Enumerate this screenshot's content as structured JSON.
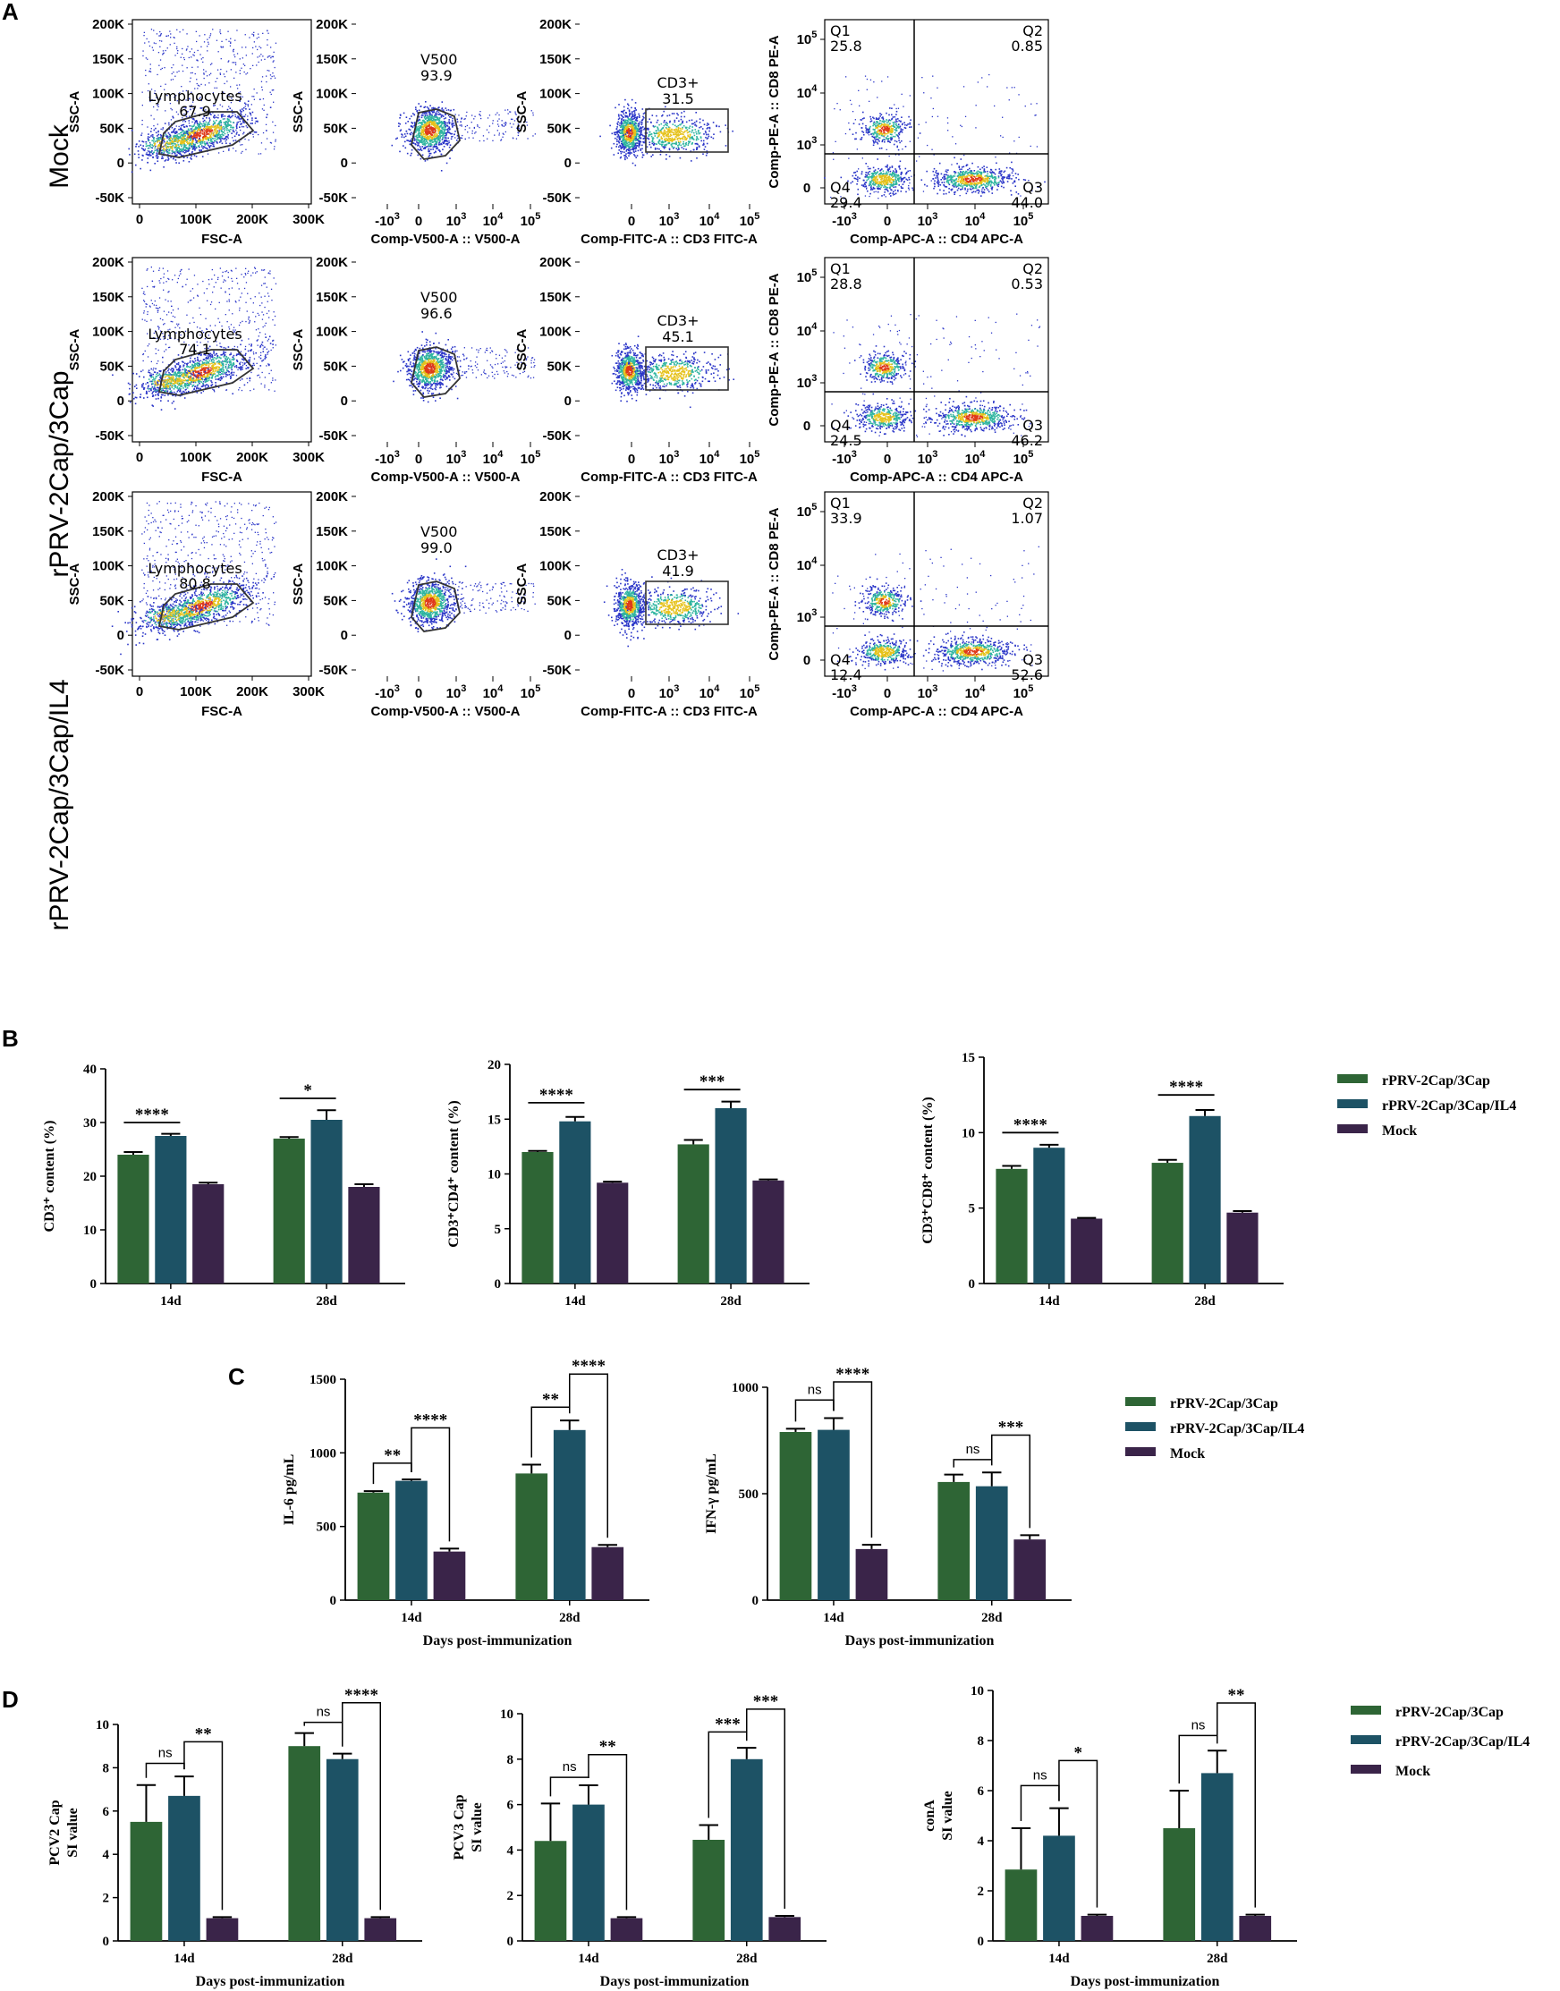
{
  "panel_labels": [
    "A",
    "B",
    "C",
    "D"
  ],
  "row_labels": [
    "Mock",
    "rPRV-2Cap/3Cap",
    "rPRV-2Cap/3Cap/IL4"
  ],
  "colors": {
    "rPRV-2Cap/3Cap": "#2e6535",
    "rPRV-2Cap/3Cap/IL4": "#1d5265",
    "Mock": "#3a2449",
    "dot_low": "#2a35c8",
    "dot_mid": "#2fb5a0",
    "dot_high": "#e6c21c",
    "dot_peak": "#e03a1a"
  },
  "flow": {
    "ssc_ticks": [
      "200K",
      "150K",
      "100K",
      "50K",
      "0",
      "-50K"
    ],
    "fsc_ticks": [
      "0",
      "100K",
      "200K",
      "300K"
    ],
    "fsc_ticks2": [
      "0",
      "100K",
      "200K",
      "300K"
    ],
    "v500_ticks": [
      "-10",
      "0",
      "10",
      "10",
      "10"
    ],
    "v500_exp": [
      "3",
      "",
      "3",
      "4",
      "5"
    ],
    "fitc_ticks": [
      "0",
      "10",
      "10",
      "10"
    ],
    "fitc_exp": [
      "",
      "3",
      "4",
      "5"
    ],
    "pe_ticks": [
      "10",
      "10",
      "10",
      "0"
    ],
    "pe_exp": [
      "5",
      "4",
      "3",
      ""
    ],
    "apc_ticks": [
      "-10",
      "0",
      "10",
      "10",
      "10"
    ],
    "apc_exp": [
      "3",
      "",
      "3",
      "4",
      "5"
    ],
    "axis_labels": {
      "ssc": "SSC-A",
      "fsc": "FSC-A",
      "v500": "Comp-V500-A :: V500-A",
      "fitc": "Comp-FITC-A :: CD3 FITC-A",
      "pe": "Comp-PE-A :: CD8 PE-A",
      "apc": "Comp-APC-A :: CD4 APC-A"
    },
    "rows": [
      {
        "lymph_label": "Lymphocytes",
        "lymph_value": "67.9",
        "v500_label": "V500",
        "v500_value": "93.9",
        "cd3_label": "CD3+",
        "cd3_value": "31.5",
        "q": [
          {
            "name": "Q1",
            "value": "25.8"
          },
          {
            "name": "Q2",
            "value": "0.85"
          },
          {
            "name": "Q3",
            "value": "44.0"
          },
          {
            "name": "Q4",
            "value": "29.4"
          }
        ]
      },
      {
        "lymph_label": "Lymphocytes",
        "lymph_value": "74.1",
        "v500_label": "V500",
        "v500_value": "96.6",
        "cd3_label": "CD3+",
        "cd3_value": "45.1",
        "q": [
          {
            "name": "Q1",
            "value": "28.8"
          },
          {
            "name": "Q2",
            "value": "0.53"
          },
          {
            "name": "Q3",
            "value": "46.2"
          },
          {
            "name": "Q4",
            "value": "24.5"
          }
        ]
      },
      {
        "lymph_label": "Lymphocytes",
        "lymph_value": "80.8",
        "v500_label": "V500",
        "v500_value": "99.0",
        "cd3_label": "CD3+",
        "cd3_value": "41.9",
        "q": [
          {
            "name": "Q1",
            "value": "33.9"
          },
          {
            "name": "Q2",
            "value": "1.07"
          },
          {
            "name": "Q3",
            "value": "52.6"
          },
          {
            "name": "Q4",
            "value": "12.4"
          }
        ]
      }
    ]
  },
  "chart_data": [
    {
      "id": "B1",
      "type": "bar",
      "title": "",
      "ylabel": "CD3⁺ content (%)",
      "xlabel": "",
      "ylim": [
        0,
        40
      ],
      "yticks": [
        "0",
        "10",
        "20",
        "30",
        "40"
      ],
      "categories": [
        "14d",
        "28d"
      ],
      "series": [
        {
          "name": "rPRV-2Cap/3Cap",
          "values": [
            24.0,
            27.0
          ],
          "errors": [
            0.5,
            0.3
          ]
        },
        {
          "name": "rPRV-2Cap/3Cap/IL4",
          "values": [
            27.5,
            30.5
          ],
          "errors": [
            0.4,
            1.8
          ]
        },
        {
          "name": "Mock",
          "values": [
            18.5,
            18.0
          ],
          "errors": [
            0.3,
            0.5
          ]
        }
      ],
      "significance": [
        {
          "label": "****",
          "cat": 0,
          "from": 0,
          "to": 1,
          "y": 30
        },
        {
          "label": "*",
          "cat": 1,
          "from": 0,
          "to": 1,
          "y": 34.5
        }
      ]
    },
    {
      "id": "B2",
      "type": "bar",
      "title": "",
      "ylabel": "CD3⁺CD4⁺ content (%)",
      "xlabel": "",
      "ylim": [
        0,
        20
      ],
      "yticks": [
        "0",
        "5",
        "10",
        "15",
        "20"
      ],
      "categories": [
        "14d",
        "28d"
      ],
      "series": [
        {
          "name": "rPRV-2Cap/3Cap",
          "values": [
            12.0,
            12.7
          ],
          "errors": [
            0.1,
            0.4
          ]
        },
        {
          "name": "rPRV-2Cap/3Cap/IL4",
          "values": [
            14.8,
            16.0
          ],
          "errors": [
            0.4,
            0.6
          ]
        },
        {
          "name": "Mock",
          "values": [
            9.2,
            9.4
          ],
          "errors": [
            0.1,
            0.1
          ]
        }
      ],
      "significance": [
        {
          "label": "****",
          "cat": 0,
          "from": 0,
          "to": 1,
          "y": 16.5
        },
        {
          "label": "***",
          "cat": 1,
          "from": 0,
          "to": 1,
          "y": 17.7
        }
      ]
    },
    {
      "id": "B3",
      "type": "bar",
      "title": "",
      "ylabel": "CD3⁺CD8⁺ content (%)",
      "xlabel": "",
      "ylim": [
        0,
        15
      ],
      "yticks": [
        "0",
        "5",
        "10",
        "15"
      ],
      "categories": [
        "14d",
        "28d"
      ],
      "series": [
        {
          "name": "rPRV-2Cap/3Cap",
          "values": [
            7.6,
            8.0
          ],
          "errors": [
            0.2,
            0.2
          ]
        },
        {
          "name": "rPRV-2Cap/3Cap/IL4",
          "values": [
            9.0,
            11.1
          ],
          "errors": [
            0.2,
            0.4
          ]
        },
        {
          "name": "Mock",
          "values": [
            4.3,
            4.7
          ],
          "errors": [
            0.05,
            0.1
          ]
        }
      ],
      "significance": [
        {
          "label": "****",
          "cat": 0,
          "from": 0,
          "to": 1,
          "y": 10.0
        },
        {
          "label": "****",
          "cat": 1,
          "from": 0,
          "to": 1,
          "y": 12.5
        }
      ],
      "legend": "right"
    },
    {
      "id": "C1",
      "type": "bar",
      "title": "",
      "ylabel": "IL-6 pg/mL",
      "xlabel": "Days post-immunization",
      "ylim": [
        0,
        1500
      ],
      "yticks": [
        "0",
        "500",
        "1000",
        "1500"
      ],
      "categories": [
        "14d",
        "28d"
      ],
      "series": [
        {
          "name": "rPRV-2Cap/3Cap",
          "values": [
            730,
            860
          ],
          "errors": [
            10,
            60
          ]
        },
        {
          "name": "rPRV-2Cap/3Cap/IL4",
          "values": [
            810,
            1155
          ],
          "errors": [
            10,
            65
          ]
        },
        {
          "name": "Mock",
          "values": [
            330,
            360
          ],
          "errors": [
            20,
            15
          ]
        }
      ],
      "significance": [
        {
          "label": "**",
          "cat": 0,
          "from": 0,
          "to": 1,
          "y": 930
        },
        {
          "label": "****",
          "cat": 0,
          "from": 1,
          "to": 2,
          "y": 1170
        },
        {
          "label": "**",
          "cat": 1,
          "from": 0,
          "to": 1,
          "y": 1310
        },
        {
          "label": "****",
          "cat": 1,
          "from": 1,
          "to": 2,
          "y": 1535
        }
      ]
    },
    {
      "id": "C2",
      "type": "bar",
      "title": "",
      "ylabel": "IFN-γ pg/mL",
      "xlabel": "Days post-immunization",
      "ylim": [
        0,
        1000
      ],
      "yticks": [
        "0",
        "500",
        "1000"
      ],
      "categories": [
        "14d",
        "28d"
      ],
      "series": [
        {
          "name": "rPRV-2Cap/3Cap",
          "values": [
            790,
            555
          ],
          "errors": [
            15,
            35
          ]
        },
        {
          "name": "rPRV-2Cap/3Cap/IL4",
          "values": [
            800,
            535
          ],
          "errors": [
            55,
            65
          ]
        },
        {
          "name": "Mock",
          "values": [
            240,
            285
          ],
          "errors": [
            20,
            20
          ]
        }
      ],
      "significance": [
        {
          "label": "ns",
          "cat": 0,
          "from": 0,
          "to": 1,
          "y": 940
        },
        {
          "label": "****",
          "cat": 0,
          "from": 1,
          "to": 2,
          "y": 1025
        },
        {
          "label": "ns",
          "cat": 1,
          "from": 0,
          "to": 1,
          "y": 660
        },
        {
          "label": "***",
          "cat": 1,
          "from": 1,
          "to": 2,
          "y": 775
        }
      ],
      "legend": "right"
    },
    {
      "id": "D1",
      "type": "bar",
      "title": "",
      "ylabel": "PCV2 Cap SI value",
      "xlabel": "Days post-immunization",
      "ylim": [
        0,
        10
      ],
      "yticks": [
        "0",
        "2",
        "4",
        "6",
        "8",
        "10"
      ],
      "categories": [
        "14d",
        "28d"
      ],
      "series": [
        {
          "name": "rPRV-2Cap/3Cap",
          "values": [
            5.5,
            9.0
          ],
          "errors": [
            1.7,
            0.6
          ]
        },
        {
          "name": "rPRV-2Cap/3Cap/IL4",
          "values": [
            6.7,
            8.4
          ],
          "errors": [
            0.9,
            0.25
          ]
        },
        {
          "name": "Mock",
          "values": [
            1.05,
            1.05
          ],
          "errors": [
            0.05,
            0.05
          ]
        }
      ],
      "significance": [
        {
          "label": "ns",
          "cat": 0,
          "from": 0,
          "to": 1,
          "y": 8.2
        },
        {
          "label": "**",
          "cat": 0,
          "from": 1,
          "to": 2,
          "y": 9.2
        },
        {
          "label": "ns",
          "cat": 1,
          "from": 0,
          "to": 1,
          "y": 10.1
        },
        {
          "label": "****",
          "cat": 1,
          "from": 1,
          "to": 2,
          "y": 11.0
        }
      ]
    },
    {
      "id": "D2",
      "type": "bar",
      "title": "",
      "ylabel": "PCV3 Cap SI value",
      "xlabel": "Days post-immunization",
      "ylim": [
        0,
        10
      ],
      "yticks": [
        "0",
        "2",
        "4",
        "6",
        "8",
        "10"
      ],
      "categories": [
        "14d",
        "28d"
      ],
      "series": [
        {
          "name": "rPRV-2Cap/3Cap",
          "values": [
            4.4,
            4.45
          ],
          "errors": [
            1.65,
            0.65
          ]
        },
        {
          "name": "rPRV-2Cap/3Cap/IL4",
          "values": [
            6.0,
            8.0
          ],
          "errors": [
            0.85,
            0.5
          ]
        },
        {
          "name": "Mock",
          "values": [
            1.0,
            1.05
          ],
          "errors": [
            0.05,
            0.05
          ]
        }
      ],
      "significance": [
        {
          "label": "ns",
          "cat": 0,
          "from": 0,
          "to": 1,
          "y": 7.2
        },
        {
          "label": "**",
          "cat": 0,
          "from": 1,
          "to": 2,
          "y": 8.2
        },
        {
          "label": "***",
          "cat": 1,
          "from": 0,
          "to": 1,
          "y": 9.2
        },
        {
          "label": "***",
          "cat": 1,
          "from": 1,
          "to": 2,
          "y": 10.2
        }
      ]
    },
    {
      "id": "D3",
      "type": "bar",
      "title": "",
      "ylabel": "conA SI value",
      "xlabel": "Days post-immunization",
      "ylim": [
        0,
        10
      ],
      "yticks": [
        "0",
        "2",
        "4",
        "6",
        "8",
        "10"
      ],
      "categories": [
        "14d",
        "28d"
      ],
      "series": [
        {
          "name": "rPRV-2Cap/3Cap",
          "values": [
            2.85,
            4.5
          ],
          "errors": [
            1.65,
            1.5
          ]
        },
        {
          "name": "rPRV-2Cap/3Cap/IL4",
          "values": [
            4.2,
            6.7
          ],
          "errors": [
            1.1,
            0.9
          ]
        },
        {
          "name": "Mock",
          "values": [
            1.0,
            1.0
          ],
          "errors": [
            0.05,
            0.05
          ]
        }
      ],
      "significance": [
        {
          "label": "ns",
          "cat": 0,
          "from": 0,
          "to": 1,
          "y": 6.2
        },
        {
          "label": "*",
          "cat": 0,
          "from": 1,
          "to": 2,
          "y": 7.2
        },
        {
          "label": "ns",
          "cat": 1,
          "from": 0,
          "to": 1,
          "y": 8.2
        },
        {
          "label": "**",
          "cat": 1,
          "from": 1,
          "to": 2,
          "y": 9.5
        }
      ],
      "legend": "right"
    }
  ]
}
